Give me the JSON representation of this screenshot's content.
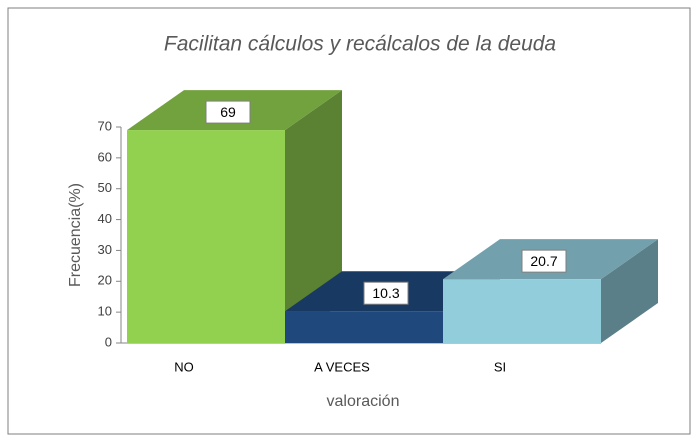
{
  "chart_data": {
    "type": "bar3d",
    "title": "Facilitan cálculos y recálcalos de la deuda",
    "categories": [
      "NO",
      "A VECES",
      "SI"
    ],
    "values": [
      69,
      10.3,
      20.7
    ],
    "colors": [
      "#92d050",
      "#1f497d",
      "#92cddc"
    ],
    "ylim": [
      0,
      70
    ],
    "yticks": [
      0,
      10,
      20,
      30,
      40,
      50,
      60,
      70
    ],
    "ylabel": "Frecuencia(%)",
    "xlabel": "valoración"
  }
}
